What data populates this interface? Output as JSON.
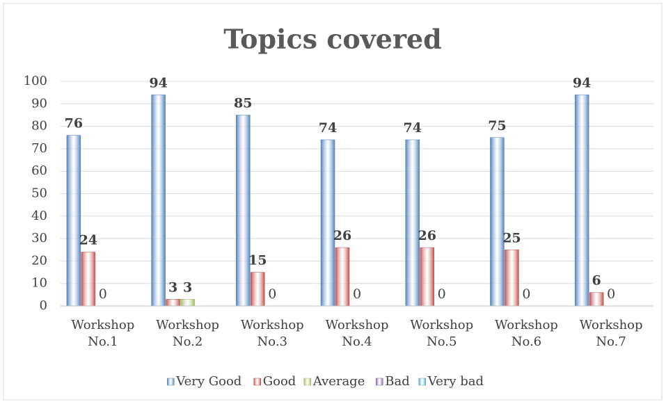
{
  "chart_data": {
    "type": "bar",
    "title": "Topics covered",
    "categories": [
      "Workshop No.1",
      "Workshop No.2",
      "Workshop No.3",
      "Workshop No.4",
      "Workshop No.5",
      "Workshop No.6",
      "Workshop No.7"
    ],
    "series": [
      {
        "name": "Very Good",
        "color": "#4f81bd",
        "show_labels": true,
        "values": [
          76,
          94,
          85,
          74,
          74,
          75,
          94
        ]
      },
      {
        "name": "Good",
        "color": "#c0504d",
        "show_labels": true,
        "values": [
          24,
          3,
          15,
          26,
          26,
          25,
          6
        ]
      },
      {
        "name": "Average",
        "color": "#9bbb59",
        "show_labels": true,
        "values": [
          0,
          3,
          0,
          0,
          0,
          0,
          0
        ]
      },
      {
        "name": "Bad",
        "color": "#8064a2",
        "show_labels": false,
        "values": [
          0,
          0,
          0,
          0,
          0,
          0,
          0
        ]
      },
      {
        "name": "Very bad",
        "color": "#4bacc6",
        "show_labels": false,
        "values": [
          0,
          0,
          0,
          0,
          0,
          0,
          0
        ]
      }
    ],
    "ylim": [
      0,
      100
    ],
    "yticks": [
      0,
      10,
      20,
      30,
      40,
      50,
      60,
      70,
      80,
      90,
      100
    ],
    "grid": true,
    "legend": "bottom"
  }
}
